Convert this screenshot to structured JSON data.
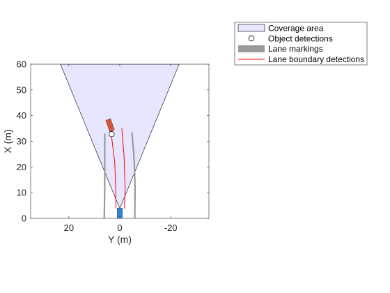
{
  "chart_data": {
    "type": "scatter",
    "title": "",
    "xlabel": "Y (m)",
    "ylabel": "X (m)",
    "xlim": [
      35,
      -35
    ],
    "ylim": [
      0,
      60
    ],
    "x_reversed": true,
    "xticks": [
      20,
      0,
      -20
    ],
    "yticks": [
      0,
      10,
      20,
      30,
      40,
      50,
      60
    ],
    "grid": false,
    "legend_position": "outside-top-right",
    "legend": [
      {
        "label": "Coverage area",
        "kind": "patch",
        "color": "#e6e6ff"
      },
      {
        "label": "Object detections",
        "kind": "marker",
        "color": "#ffffff"
      },
      {
        "label": "Lane markings",
        "kind": "patch",
        "color": "#999999"
      },
      {
        "label": "Lane boundary detections",
        "kind": "line",
        "color": "#ff0000"
      }
    ],
    "coverage_area": {
      "origin": [
        0,
        3.8
      ],
      "vertices": [
        [
          0,
          3.8
        ],
        [
          23.3,
          60
        ],
        [
          -23.3,
          60
        ]
      ],
      "color": "#e6e6ff",
      "edge_color": "#000000"
    },
    "lane_markings": [
      {
        "points": [
          [
            6.1,
            0
          ],
          [
            5.9,
            12
          ],
          [
            5.9,
            22
          ],
          [
            5.9,
            33
          ]
        ]
      },
      {
        "points": [
          [
            -5.9,
            0
          ],
          [
            -6.0,
            12
          ],
          [
            -5.7,
            22
          ],
          [
            -4.8,
            33.5
          ]
        ]
      }
    ],
    "lane_boundary_detections": [
      {
        "points": [
          [
            1.5,
            3.8
          ],
          [
            1.6,
            12
          ],
          [
            2.0,
            22
          ],
          [
            3.5,
            34
          ]
        ]
      },
      {
        "points": [
          [
            -1.8,
            3.8
          ],
          [
            -2.1,
            12
          ],
          [
            -1.7,
            24
          ],
          [
            -0.8,
            35
          ]
        ]
      }
    ],
    "object_detections": [
      {
        "x": 3.2,
        "y": 32.8
      }
    ],
    "target_vehicle": {
      "center": [
        3.8,
        36.3
      ],
      "length": 4.6,
      "width": 2.0,
      "heading_deg": 19,
      "color": "#d9543a"
    },
    "ego_vehicle": {
      "center": [
        0,
        1.7
      ],
      "length": 4.6,
      "width": 2.0,
      "heading_deg": 0,
      "color": "#2e86d4"
    }
  }
}
